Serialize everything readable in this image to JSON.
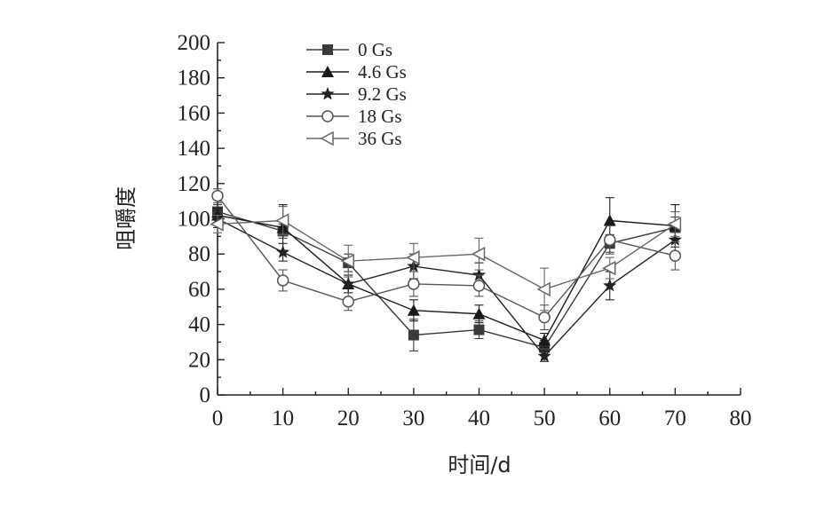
{
  "chart_data": {
    "type": "line",
    "xlabel": "时间/d",
    "ylabel": "咀嚼度",
    "xlim": [
      0,
      80
    ],
    "ylim": [
      0,
      200
    ],
    "x_ticks": [
      "0",
      "10",
      "20",
      "30",
      "40",
      "50",
      "60",
      "70",
      "80"
    ],
    "y_ticks": [
      "0",
      "20",
      "40",
      "60",
      "80",
      "100",
      "120",
      "140",
      "160",
      "180",
      "200"
    ],
    "legend_position": "top-left",
    "x": [
      0,
      10,
      20,
      30,
      40,
      50,
      60,
      70
    ],
    "series": [
      {
        "name": "0 Gs",
        "marker": "filled-square",
        "color": "#3a3a3a",
        "values": [
          104,
          93,
          75,
          34,
          37,
          27,
          86,
          95
        ],
        "errors": [
          4,
          4,
          5,
          9,
          5,
          4,
          5,
          6
        ]
      },
      {
        "name": "4.6 Gs",
        "marker": "filled-triangle",
        "color": "#1a1a1a",
        "values": [
          102,
          95,
          63,
          48,
          46,
          31,
          99,
          96
        ],
        "errors": [
          4,
          13,
          5,
          6,
          5,
          4,
          13,
          12
        ]
      },
      {
        "name": "9.2 Gs",
        "marker": "filled-star",
        "color": "#222222",
        "values": [
          100,
          81,
          63,
          73,
          68,
          22,
          62,
          88
        ],
        "errors": [
          5,
          5,
          5,
          7,
          7,
          3,
          8,
          7
        ]
      },
      {
        "name": "18 Gs",
        "marker": "open-circle",
        "color": "#555555",
        "values": [
          113,
          65,
          53,
          63,
          62,
          44,
          88,
          79
        ],
        "errors": [
          4,
          6,
          5,
          7,
          6,
          7,
          8,
          8
        ]
      },
      {
        "name": "36 Gs",
        "marker": "open-triangle-left",
        "color": "#666666",
        "values": [
          97,
          99,
          76,
          78,
          80,
          60,
          72,
          97
        ],
        "errors": [
          5,
          8,
          9,
          8,
          9,
          12,
          6,
          7
        ]
      }
    ]
  }
}
